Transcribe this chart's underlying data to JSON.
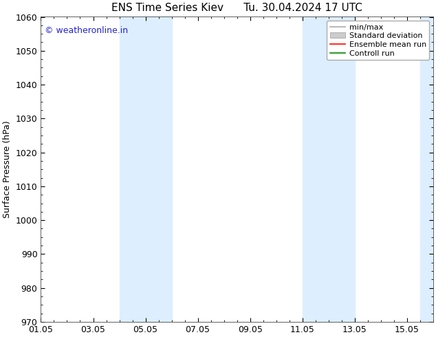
{
  "title_left": "ENS Time Series Kiev",
  "title_right": "Tu. 30.04.2024 17 UTC",
  "ylabel": "Surface Pressure (hPa)",
  "ylim": [
    970,
    1060
  ],
  "yticks": [
    970,
    980,
    990,
    1000,
    1010,
    1020,
    1030,
    1040,
    1050,
    1060
  ],
  "xtick_labels": [
    "01.05",
    "03.05",
    "05.05",
    "07.05",
    "09.05",
    "11.05",
    "13.05",
    "15.05"
  ],
  "xtick_positions": [
    0,
    2,
    4,
    6,
    8,
    10,
    12,
    14
  ],
  "xlim": [
    0,
    15
  ],
  "shaded_bands": [
    {
      "x_start": 3.0,
      "x_end": 5.0
    },
    {
      "x_start": 10.0,
      "x_end": 12.0
    },
    {
      "x_start": 14.5,
      "x_end": 15.0
    }
  ],
  "shaded_color": "#ddeeff",
  "watermark_text": "© weatheronline.in",
  "watermark_color": "#2222cc",
  "background_color": "#ffffff",
  "spine_color": "#444444",
  "title_fontsize": 11,
  "axis_label_fontsize": 9,
  "tick_fontsize": 9,
  "legend_entries": [
    "min/max",
    "Standard deviation",
    "Ensemble mean run",
    "Controll run"
  ],
  "legend_line_colors": [
    "#aaaaaa",
    "#cccccc",
    "#ff0000",
    "#007700"
  ],
  "legend_fontsize": 8
}
